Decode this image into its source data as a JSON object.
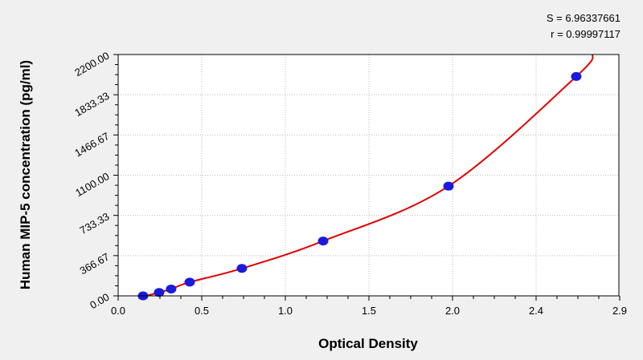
{
  "chart_data": {
    "type": "scatter",
    "title": "",
    "xlabel": "Optical Density",
    "ylabel": "Human MIP-5 concentration (pg/ml)",
    "annotations": [
      "S = 6.96337661",
      "r = 0.99997117"
    ],
    "xlim": [
      0,
      2.995
    ],
    "ylim": [
      0,
      2200
    ],
    "x_tick_labels": [
      "0.0",
      "0.5",
      "1.0",
      "1.5",
      "2.0",
      "2.4",
      "2.9"
    ],
    "y_tick_labels": [
      "0.00",
      "366.67",
      "733.33",
      "1100.00",
      "1466.67",
      "1833.33",
      "2200.00"
    ],
    "grid": true,
    "series": [
      {
        "marker_color": "#1a1adc",
        "line_color": "#e00000",
        "points": [
          {
            "x": 0.149,
            "y": 0
          },
          {
            "x": 0.245,
            "y": 31.25
          },
          {
            "x": 0.317,
            "y": 62.5
          },
          {
            "x": 0.428,
            "y": 125
          },
          {
            "x": 0.74,
            "y": 250
          },
          {
            "x": 1.226,
            "y": 500
          },
          {
            "x": 1.976,
            "y": 1000
          },
          {
            "x": 2.74,
            "y": 2000
          }
        ],
        "fit_curve_x_range": [
          0.17,
          2.84
        ]
      }
    ]
  }
}
